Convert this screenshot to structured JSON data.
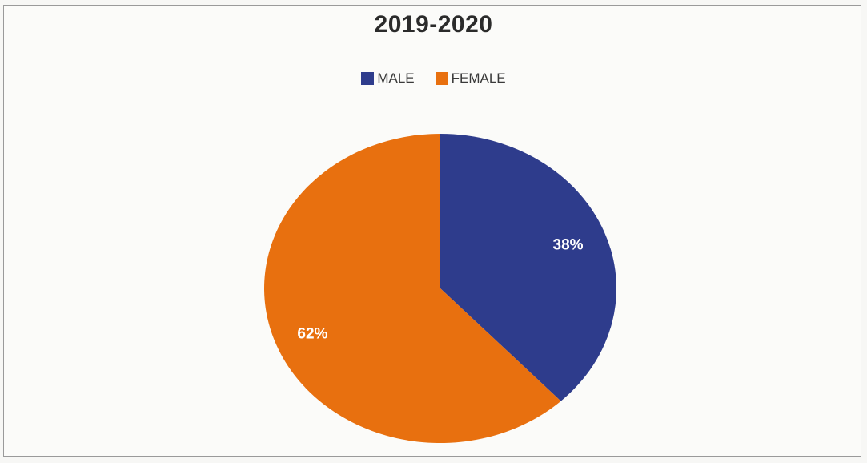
{
  "chart_data": {
    "type": "pie",
    "title": "2019-2020",
    "legend_position": "top",
    "slices": [
      {
        "name": "MALE",
        "value": 38,
        "label": "38%",
        "color": "#2E3C8C"
      },
      {
        "name": "FEMALE",
        "value": 62,
        "label": "62%",
        "color": "#E8700F"
      }
    ],
    "start_angle": "12-o-clock",
    "direction": "clockwise"
  }
}
